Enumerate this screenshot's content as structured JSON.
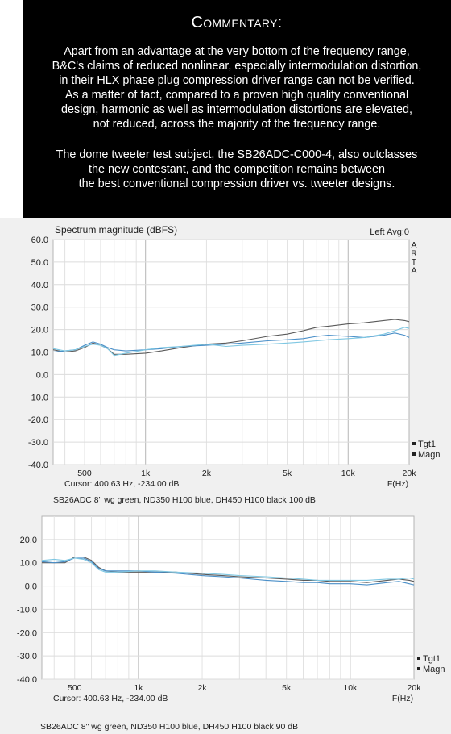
{
  "commentary": {
    "title": "Commentary:",
    "paragraph_1_lines": [
      "Apart from an advantage at the very bottom of the frequency range,",
      "B&C's claims of reduced nonlinear, especially intermodulation distortion,",
      "in their HLX phase plug compression driver range can not be verified.",
      "As a matter of fact, compared to a proven high quality conventional",
      "design, harmonic as well as intermodulation distortions are elevated,",
      "not reduced, across the majority of the frequency range."
    ],
    "paragraph_2_lines": [
      "The dome tweeter test subject, the SB26ADC-C000-4, also outclasses",
      "the new contestant, and the competition remains between",
      "the best conventional compression driver vs. tweeter designs."
    ]
  },
  "chart_data": [
    {
      "type": "line",
      "title": "Spectrum magnitude (dBFS)",
      "top_right_label": "Left  Avg:0",
      "watermark": "ARTA",
      "x_scale": "log",
      "xlim": [
        350,
        20000
      ],
      "ylim": [
        -40,
        60
      ],
      "yticks": [
        60.0,
        50.0,
        40.0,
        30.0,
        20.0,
        10.0,
        0.0,
        -10.0,
        -20.0,
        -30.0,
        -40.0
      ],
      "ytick_labels": [
        "60.0",
        "50.0",
        "40.0",
        "30.0",
        "20.0",
        "10.0",
        "0.0",
        "-10.0",
        "-20.0",
        "-30.0",
        "-40.0"
      ],
      "xticks": [
        500,
        1000,
        2000,
        5000,
        10000,
        20000
      ],
      "xtick_labels": [
        "500",
        "1k",
        "2k",
        "5k",
        "10k",
        "20k"
      ],
      "xlabel": "F(Hz)",
      "cursor_text": "Cursor: 400.63 Hz, -234.00 dB",
      "legend": [
        "Tgt1",
        "Magn"
      ],
      "caption": "SB26ADC 8\" wg green, ND350 H100 blue, DH450 H100 black 100 dB",
      "grid": true,
      "series": [
        {
          "color": "#5a5a5a",
          "x": [
            350,
            400,
            450,
            500,
            550,
            600,
            650,
            700,
            800,
            1000,
            1200,
            1500,
            2000,
            2500,
            3000,
            4000,
            5000,
            6000,
            7000,
            8000,
            10000,
            12000,
            15000,
            17000,
            19000,
            20000
          ],
          "y": [
            11,
            10,
            10.5,
            12,
            14,
            13,
            11.5,
            9,
            9,
            9.5,
            10.5,
            12,
            13.5,
            14,
            15,
            17,
            18,
            19.5,
            21,
            21.5,
            22.5,
            23,
            24,
            24.5,
            24,
            23.5
          ]
        },
        {
          "color": "#4a8fc8",
          "x": [
            350,
            400,
            450,
            500,
            550,
            600,
            650,
            700,
            800,
            1000,
            1200,
            1500,
            2000,
            2500,
            3000,
            4000,
            5000,
            6000,
            7000,
            8000,
            10000,
            12000,
            15000,
            17000,
            19000,
            20000
          ],
          "y": [
            10,
            10.5,
            11,
            13,
            14.5,
            13.5,
            12,
            11,
            10.5,
            11,
            11.5,
            12.5,
            13,
            13.5,
            14,
            15,
            15.5,
            16,
            17,
            17.5,
            17,
            16.5,
            17.5,
            18.5,
            17.5,
            16.5
          ]
        },
        {
          "color": "#7fc7e2",
          "x": [
            350,
            400,
            450,
            500,
            550,
            600,
            650,
            700,
            800,
            1000,
            1200,
            1500,
            2000,
            2500,
            3000,
            4000,
            5000,
            6000,
            7000,
            8000,
            10000,
            12000,
            15000,
            17000,
            19000,
            20000
          ],
          "y": [
            11.5,
            10.5,
            11,
            12.5,
            13.5,
            13,
            11.5,
            8.5,
            9.5,
            11,
            12,
            12.5,
            13.5,
            12.5,
            13,
            13.5,
            14,
            14.5,
            15,
            15.5,
            16,
            16.5,
            18,
            19.5,
            21,
            20.5
          ]
        }
      ]
    },
    {
      "type": "line",
      "x_scale": "log",
      "xlim": [
        350,
        20000
      ],
      "ylim": [
        -40,
        30
      ],
      "yticks": [
        20.0,
        10.0,
        0.0,
        -10.0,
        -20.0,
        -30.0,
        -40.0
      ],
      "ytick_labels": [
        "20.0",
        "10.0",
        "0.0",
        "-10.0",
        "-20.0",
        "-30.0",
        "-40.0"
      ],
      "xticks": [
        500,
        1000,
        2000,
        5000,
        10000,
        20000
      ],
      "xtick_labels": [
        "500",
        "1k",
        "2k",
        "5k",
        "10k",
        "20k"
      ],
      "xlabel": "F(Hz)",
      "cursor_text": "Cursor: 400.63 Hz, -234.00 dB",
      "legend": [
        "Tgt1",
        "Magn"
      ],
      "caption": "SB26ADC 8\" wg green, ND350 H100 blue, DH450 H100 black 90 dB",
      "grid": true,
      "series": [
        {
          "color": "#5a5a5a",
          "x": [
            350,
            400,
            450,
            500,
            550,
            600,
            650,
            700,
            800,
            1000,
            1200,
            1500,
            2000,
            2500,
            3000,
            4000,
            5000,
            6000,
            7000,
            8000,
            10000,
            12000,
            15000,
            17000,
            19000,
            20000
          ],
          "y": [
            10,
            10,
            10,
            12.5,
            12.5,
            11,
            8,
            6.5,
            6,
            6,
            6,
            6,
            5,
            4.5,
            4,
            3.5,
            3,
            2.5,
            2.5,
            2,
            2,
            1.5,
            2.5,
            3,
            2.5,
            2
          ]
        },
        {
          "color": "#4a8fc8",
          "x": [
            350,
            400,
            450,
            500,
            550,
            600,
            650,
            700,
            800,
            1000,
            1200,
            1500,
            2000,
            2500,
            3000,
            4000,
            5000,
            6000,
            7000,
            8000,
            10000,
            12000,
            15000,
            17000,
            19000,
            20000
          ],
          "y": [
            10.5,
            10,
            10.5,
            12,
            12,
            10.5,
            7.5,
            6.5,
            6.5,
            6.5,
            6,
            5.5,
            4.5,
            4,
            3.5,
            2.5,
            2,
            1.5,
            1.5,
            1,
            1,
            0.5,
            1.5,
            2,
            1,
            0.5
          ]
        },
        {
          "color": "#7fc7e2",
          "x": [
            350,
            400,
            450,
            500,
            550,
            600,
            650,
            700,
            800,
            1000,
            1200,
            1500,
            2000,
            2500,
            3000,
            4000,
            5000,
            6000,
            7000,
            8000,
            10000,
            12000,
            15000,
            17000,
            19000,
            20000
          ],
          "y": [
            11,
            11.5,
            11,
            12,
            11.5,
            10,
            7,
            6,
            6,
            6.5,
            6.5,
            6,
            5.5,
            5,
            4.5,
            4,
            3.5,
            3,
            2.5,
            2.5,
            2.5,
            2.5,
            3,
            3,
            3.5,
            3
          ]
        }
      ]
    }
  ]
}
